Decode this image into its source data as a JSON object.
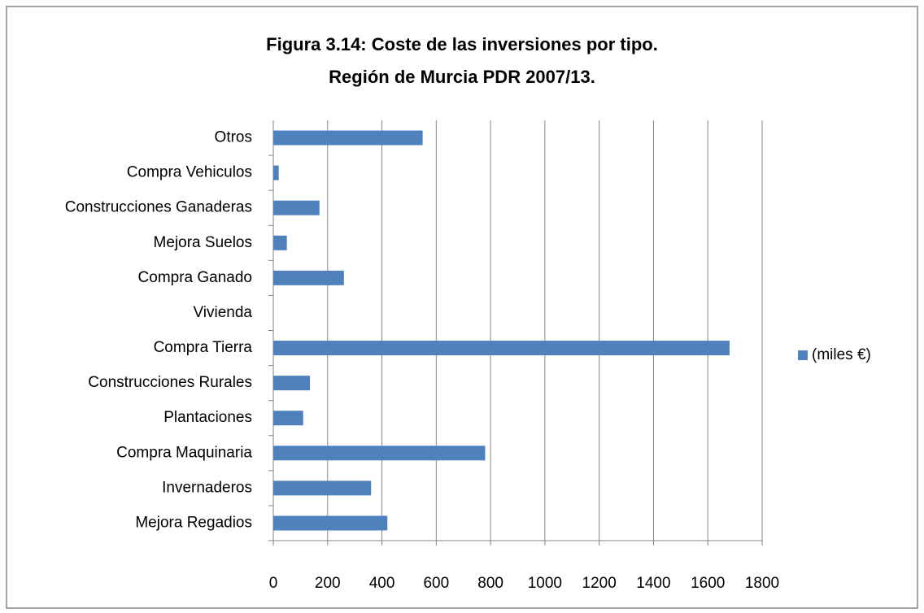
{
  "chart_data": {
    "type": "hbar",
    "title": [
      "Figura 3.14: Coste de las inversiones por tipo.",
      "Región de Murcia PDR 2007/13."
    ],
    "categories": [
      "Mejora Regadios",
      "Invernaderos",
      "Compra Maquinaria",
      "Plantaciones",
      "Construcciones Rurales",
      "Compra Tierra",
      "Vivienda",
      "Compra Ganado",
      "Mejora Suelos",
      "Construcciones Ganaderas",
      "Compra Vehiculos",
      "Otros"
    ],
    "series": [
      {
        "name": "(miles €)",
        "color": "#4f81bd",
        "values": [
          420,
          360,
          780,
          110,
          135,
          1680,
          0,
          260,
          50,
          170,
          20,
          550
        ]
      }
    ],
    "xlim": [
      0,
      1800
    ],
    "xticks": [
      0,
      200,
      400,
      600,
      800,
      1000,
      1200,
      1400,
      1600,
      1800
    ],
    "grid": true,
    "legend": "right"
  }
}
